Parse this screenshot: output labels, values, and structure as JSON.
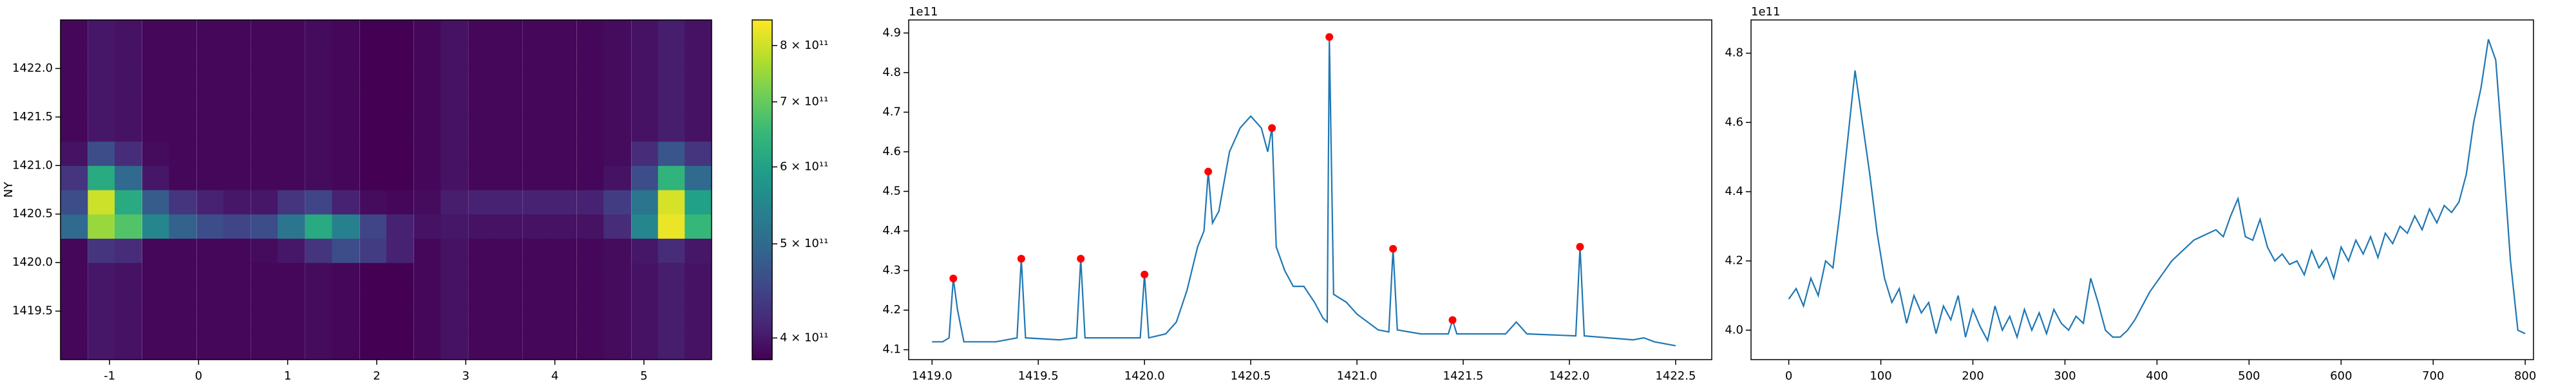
{
  "chart_data": [
    {
      "type": "heatmap",
      "y_label": "NY",
      "xlim": [
        -1.55,
        5.76
      ],
      "ylim": [
        1419.0,
        1422.5
      ],
      "xticks": [
        -1,
        0,
        1,
        2,
        3,
        4,
        5
      ],
      "yticks": [
        1419.5,
        {
          "value": 1420,
          "label": "1420.0"
        },
        1420.5,
        {
          "value": 1421,
          "label": "1421.0"
        },
        1421.5,
        {
          "value": 1422,
          "label": "1422.0"
        }
      ],
      "x": [
        -1.4,
        -1.09,
        -0.79,
        -0.48,
        -0.18,
        0.13,
        0.43,
        0.74,
        1.04,
        1.35,
        1.65,
        1.96,
        2.26,
        2.57,
        2.87,
        3.18,
        3.48,
        3.79,
        4.09,
        4.4,
        4.7,
        5.01,
        5.31,
        5.61
      ],
      "y": [
        1419.125,
        1419.375,
        1419.625,
        1419.875,
        1420.125,
        1420.375,
        1420.625,
        1420.875,
        1421.125,
        1421.375,
        1421.625,
        1421.875,
        1422.125,
        1422.375
      ],
      "values": [
        [
          385000000000.0,
          400000000000.0,
          395000000000.0,
          385000000000.0,
          385000000000.0,
          385000000000.0,
          385000000000.0,
          385000000000.0,
          385000000000.0,
          390000000000.0,
          385000000000.0,
          380000000000.0,
          380000000000.0,
          385000000000.0,
          395000000000.0,
          385000000000.0,
          385000000000.0,
          385000000000.0,
          385000000000.0,
          385000000000.0,
          390000000000.0,
          395000000000.0,
          405000000000.0,
          395000000000.0
        ],
        [
          385000000000.0,
          400000000000.0,
          395000000000.0,
          385000000000.0,
          385000000000.0,
          385000000000.0,
          385000000000.0,
          385000000000.0,
          385000000000.0,
          390000000000.0,
          385000000000.0,
          380000000000.0,
          380000000000.0,
          385000000000.0,
          395000000000.0,
          385000000000.0,
          385000000000.0,
          385000000000.0,
          385000000000.0,
          385000000000.0,
          390000000000.0,
          395000000000.0,
          405000000000.0,
          395000000000.0
        ],
        [
          385000000000.0,
          400000000000.0,
          395000000000.0,
          385000000000.0,
          385000000000.0,
          385000000000.0,
          385000000000.0,
          385000000000.0,
          385000000000.0,
          390000000000.0,
          385000000000.0,
          380000000000.0,
          380000000000.0,
          385000000000.0,
          395000000000.0,
          385000000000.0,
          385000000000.0,
          385000000000.0,
          385000000000.0,
          385000000000.0,
          390000000000.0,
          395000000000.0,
          405000000000.0,
          395000000000.0
        ],
        [
          385000000000.0,
          400000000000.0,
          395000000000.0,
          385000000000.0,
          385000000000.0,
          385000000000.0,
          385000000000.0,
          385000000000.0,
          385000000000.0,
          390000000000.0,
          385000000000.0,
          380000000000.0,
          380000000000.0,
          385000000000.0,
          395000000000.0,
          385000000000.0,
          385000000000.0,
          385000000000.0,
          385000000000.0,
          385000000000.0,
          390000000000.0,
          395000000000.0,
          405000000000.0,
          395000000000.0
        ],
        [
          385000000000.0,
          430000000000.0,
          420000000000.0,
          385000000000.0,
          385000000000.0,
          385000000000.0,
          385000000000.0,
          390000000000.0,
          400000000000.0,
          430000000000.0,
          460000000000.0,
          440000000000.0,
          410000000000.0,
          385000000000.0,
          395000000000.0,
          385000000000.0,
          385000000000.0,
          385000000000.0,
          385000000000.0,
          385000000000.0,
          390000000000.0,
          400000000000.0,
          420000000000.0,
          400000000000.0
        ],
        [
          500000000000.0,
          750000000000.0,
          680000000000.0,
          550000000000.0,
          490000000000.0,
          460000000000.0,
          450000000000.0,
          460000000000.0,
          520000000000.0,
          620000000000.0,
          540000000000.0,
          450000000000.0,
          410000000000.0,
          395000000000.0,
          400000000000.0,
          395000000000.0,
          395000000000.0,
          395000000000.0,
          395000000000.0,
          395000000000.0,
          420000000000.0,
          550000000000.0,
          830000000000.0,
          650000000000.0
        ],
        [
          460000000000.0,
          800000000000.0,
          620000000000.0,
          480000000000.0,
          430000000000.0,
          410000000000.0,
          400000000000.0,
          400000000000.0,
          430000000000.0,
          450000000000.0,
          410000000000.0,
          390000000000.0,
          385000000000.0,
          390000000000.0,
          405000000000.0,
          410000000000.0,
          410000000000.0,
          410000000000.0,
          410000000000.0,
          410000000000.0,
          440000000000.0,
          520000000000.0,
          810000000000.0,
          600000000000.0
        ],
        [
          430000000000.0,
          620000000000.0,
          500000000000.0,
          400000000000.0,
          385000000000.0,
          385000000000.0,
          385000000000.0,
          385000000000.0,
          385000000000.0,
          390000000000.0,
          385000000000.0,
          380000000000.0,
          380000000000.0,
          385000000000.0,
          395000000000.0,
          385000000000.0,
          385000000000.0,
          385000000000.0,
          385000000000.0,
          385000000000.0,
          395000000000.0,
          460000000000.0,
          640000000000.0,
          500000000000.0
        ],
        [
          395000000000.0,
          460000000000.0,
          420000000000.0,
          390000000000.0,
          385000000000.0,
          385000000000.0,
          385000000000.0,
          385000000000.0,
          385000000000.0,
          390000000000.0,
          385000000000.0,
          380000000000.0,
          380000000000.0,
          385000000000.0,
          395000000000.0,
          385000000000.0,
          385000000000.0,
          385000000000.0,
          385000000000.0,
          385000000000.0,
          390000000000.0,
          420000000000.0,
          470000000000.0,
          430000000000.0
        ],
        [
          385000000000.0,
          400000000000.0,
          395000000000.0,
          385000000000.0,
          385000000000.0,
          385000000000.0,
          385000000000.0,
          385000000000.0,
          385000000000.0,
          390000000000.0,
          385000000000.0,
          380000000000.0,
          380000000000.0,
          385000000000.0,
          395000000000.0,
          385000000000.0,
          385000000000.0,
          385000000000.0,
          385000000000.0,
          385000000000.0,
          390000000000.0,
          395000000000.0,
          405000000000.0,
          395000000000.0
        ],
        [
          385000000000.0,
          400000000000.0,
          395000000000.0,
          385000000000.0,
          385000000000.0,
          385000000000.0,
          385000000000.0,
          385000000000.0,
          385000000000.0,
          390000000000.0,
          385000000000.0,
          380000000000.0,
          380000000000.0,
          385000000000.0,
          395000000000.0,
          385000000000.0,
          385000000000.0,
          385000000000.0,
          385000000000.0,
          385000000000.0,
          390000000000.0,
          395000000000.0,
          405000000000.0,
          395000000000.0
        ],
        [
          385000000000.0,
          400000000000.0,
          395000000000.0,
          385000000000.0,
          385000000000.0,
          385000000000.0,
          385000000000.0,
          385000000000.0,
          385000000000.0,
          390000000000.0,
          385000000000.0,
          380000000000.0,
          380000000000.0,
          385000000000.0,
          395000000000.0,
          385000000000.0,
          385000000000.0,
          385000000000.0,
          385000000000.0,
          385000000000.0,
          390000000000.0,
          395000000000.0,
          405000000000.0,
          395000000000.0
        ],
        [
          385000000000.0,
          400000000000.0,
          395000000000.0,
          385000000000.0,
          385000000000.0,
          385000000000.0,
          385000000000.0,
          385000000000.0,
          385000000000.0,
          390000000000.0,
          385000000000.0,
          380000000000.0,
          380000000000.0,
          385000000000.0,
          395000000000.0,
          385000000000.0,
          385000000000.0,
          385000000000.0,
          385000000000.0,
          385000000000.0,
          390000000000.0,
          395000000000.0,
          405000000000.0,
          395000000000.0
        ],
        [
          385000000000.0,
          400000000000.0,
          395000000000.0,
          385000000000.0,
          385000000000.0,
          385000000000.0,
          385000000000.0,
          385000000000.0,
          385000000000.0,
          390000000000.0,
          385000000000.0,
          380000000000.0,
          380000000000.0,
          385000000000.0,
          395000000000.0,
          385000000000.0,
          385000000000.0,
          385000000000.0,
          385000000000.0,
          385000000000.0,
          390000000000.0,
          395000000000.0,
          405000000000.0,
          395000000000.0
        ]
      ],
      "colorbar": {
        "colormap": "viridis",
        "scale": "log",
        "lim": [
          380000000000.0,
          850000000000.0
        ],
        "ticks": [
          {
            "value": 400000000000.0,
            "label": "4 × 10¹¹"
          },
          {
            "value": 500000000000.0,
            "label": "5 × 10¹¹"
          },
          {
            "value": 600000000000.0,
            "label": "6 × 10¹¹"
          },
          {
            "value": 700000000000.0,
            "label": "7 × 10¹¹"
          },
          {
            "value": 800000000000.0,
            "label": "8 × 10¹¹"
          }
        ]
      }
    },
    {
      "type": "line",
      "offset_label": "1e11",
      "color": "#1f77b4",
      "xlim": [
        1418.89,
        1422.67
      ],
      "ylim": [
        4.075,
        4.933
      ],
      "xticks": [
        {
          "value": 1419,
          "label": "1419.0"
        },
        1419.5,
        {
          "value": 1420,
          "label": "1420.0"
        },
        1420.5,
        {
          "value": 1421,
          "label": "1421.0"
        },
        1421.5,
        {
          "value": 1422,
          "label": "1422.0"
        },
        1422.5
      ],
      "yticks": [
        4.1,
        4.2,
        4.3,
        4.4,
        4.5,
        4.6,
        4.7,
        4.8,
        4.9
      ],
      "x": [
        1419.0,
        1419.05,
        1419.08,
        1419.1,
        1419.12,
        1419.15,
        1419.3,
        1419.4,
        1419.42,
        1419.44,
        1419.6,
        1419.68,
        1419.7,
        1419.72,
        1419.85,
        1419.98,
        1420.0,
        1420.02,
        1420.1,
        1420.15,
        1420.2,
        1420.25,
        1420.28,
        1420.3,
        1420.32,
        1420.35,
        1420.4,
        1420.45,
        1420.5,
        1420.55,
        1420.58,
        1420.6,
        1420.62,
        1420.66,
        1420.7,
        1420.75,
        1420.8,
        1420.84,
        1420.86,
        1420.87,
        1420.89,
        1420.95,
        1421.0,
        1421.1,
        1421.15,
        1421.17,
        1421.19,
        1421.3,
        1421.43,
        1421.45,
        1421.47,
        1421.7,
        1421.75,
        1421.8,
        1422.03,
        1422.05,
        1422.07,
        1422.3,
        1422.35,
        1422.4,
        1422.5
      ],
      "values": [
        4.12,
        4.12,
        4.13,
        4.28,
        4.2,
        4.12,
        4.12,
        4.13,
        4.33,
        4.13,
        4.125,
        4.13,
        4.33,
        4.13,
        4.13,
        4.13,
        4.29,
        4.13,
        4.14,
        4.17,
        4.25,
        4.36,
        4.4,
        4.55,
        4.42,
        4.45,
        4.6,
        4.66,
        4.69,
        4.66,
        4.6,
        4.66,
        4.36,
        4.3,
        4.26,
        4.26,
        4.22,
        4.18,
        4.17,
        4.89,
        4.24,
        4.22,
        4.19,
        4.15,
        4.145,
        4.355,
        4.15,
        4.14,
        4.14,
        4.175,
        4.14,
        4.14,
        4.17,
        4.14,
        4.135,
        4.36,
        4.135,
        4.125,
        4.13,
        4.12,
        4.11
      ],
      "peaks": {
        "color": "red",
        "x": [
          1419.1,
          1419.42,
          1419.7,
          1420.0,
          1420.3,
          1420.6,
          1420.87,
          1421.17,
          1421.45,
          1422.05
        ],
        "values": [
          4.28,
          4.33,
          4.33,
          4.29,
          4.55,
          4.66,
          4.89,
          4.355,
          4.175,
          4.36
        ]
      }
    },
    {
      "type": "line",
      "offset_label": "1e11",
      "color": "#1f77b4",
      "xlim": [
        -41,
        809
      ],
      "ylim": [
        3.915,
        4.896
      ],
      "xticks": [
        0,
        100,
        200,
        300,
        400,
        500,
        600,
        700,
        800
      ],
      "yticks": [
        {
          "value": 4,
          "label": "4.0"
        },
        4.2,
        4.4,
        4.6,
        4.8
      ],
      "x": [
        0,
        8,
        16,
        24,
        32,
        40,
        48,
        56,
        64,
        72,
        80,
        88,
        96,
        104,
        112,
        120,
        128,
        136,
        144,
        152,
        160,
        168,
        176,
        184,
        192,
        200,
        208,
        216,
        224,
        232,
        240,
        248,
        256,
        264,
        272,
        280,
        288,
        296,
        304,
        312,
        320,
        328,
        336,
        344,
        352,
        360,
        368,
        376,
        384,
        392,
        400,
        408,
        416,
        424,
        432,
        440,
        448,
        456,
        464,
        472,
        480,
        488,
        496,
        504,
        512,
        520,
        528,
        536,
        544,
        552,
        560,
        568,
        576,
        584,
        592,
        600,
        608,
        616,
        624,
        632,
        640,
        648,
        656,
        664,
        672,
        680,
        688,
        696,
        704,
        712,
        720,
        728,
        736,
        744,
        752,
        760,
        768,
        776,
        784,
        792,
        800
      ],
      "values": [
        4.09,
        4.12,
        4.07,
        4.15,
        4.1,
        4.2,
        4.18,
        4.35,
        4.55,
        4.75,
        4.6,
        4.45,
        4.28,
        4.15,
        4.08,
        4.12,
        4.02,
        4.1,
        4.05,
        4.08,
        3.99,
        4.07,
        4.03,
        4.1,
        3.98,
        4.06,
        4.01,
        3.97,
        4.07,
        4.0,
        4.04,
        3.98,
        4.06,
        4.0,
        4.05,
        3.99,
        4.06,
        4.02,
        4.0,
        4.04,
        4.02,
        4.15,
        4.08,
        4.0,
        3.98,
        3.98,
        4.0,
        4.03,
        4.07,
        4.11,
        4.14,
        4.17,
        4.2,
        4.22,
        4.24,
        4.26,
        4.27,
        4.28,
        4.29,
        4.27,
        4.33,
        4.38,
        4.27,
        4.26,
        4.32,
        4.24,
        4.2,
        4.22,
        4.19,
        4.2,
        4.16,
        4.23,
        4.18,
        4.21,
        4.15,
        4.24,
        4.2,
        4.26,
        4.22,
        4.27,
        4.21,
        4.28,
        4.25,
        4.3,
        4.28,
        4.33,
        4.29,
        4.35,
        4.31,
        4.36,
        4.34,
        4.37,
        4.45,
        4.6,
        4.7,
        4.84,
        4.78,
        4.5,
        4.2,
        4.0,
        3.99
      ]
    }
  ]
}
